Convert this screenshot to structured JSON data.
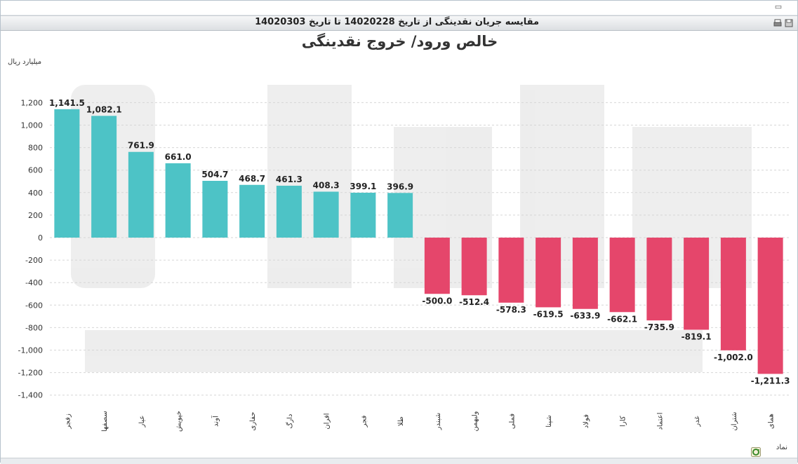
{
  "window": {
    "title": "مقایسه جریان نقدینگی از تاریخ 14020228 تا تاریخ 14020303",
    "icons": [
      "print-icon",
      "restore-icon"
    ]
  },
  "chart_data": {
    "type": "bar",
    "title": "خالص ورود/ خروج نقدینگی",
    "ylabel": "میلیارد ریال",
    "xlabel": "نماد",
    "categories": [
      "زفجر",
      "سصفها",
      "عیار",
      "خپویش",
      "آوند",
      "حفاری",
      "دارگ",
      "افران",
      "فجر",
      "طلا",
      "شبندر",
      "ولبهمن",
      "فملی",
      "شپنا",
      "فولاد",
      "کارا",
      "اعتماد",
      "غدر",
      "شتران",
      "همای"
    ],
    "values": [
      1141.5,
      1082.1,
      761.9,
      661.0,
      504.7,
      468.7,
      461.3,
      408.3,
      399.1,
      396.9,
      -500.0,
      -512.4,
      -578.3,
      -619.5,
      -633.9,
      -662.1,
      -735.9,
      -819.1,
      -1002.0,
      -1211.3
    ],
    "value_labels": [
      "1,141.5",
      "1,082.1",
      "761.9",
      "661.0",
      "504.7",
      "468.7",
      "461.3",
      "408.3",
      "399.1",
      "396.9",
      "-500.0",
      "-512.4",
      "-578.3",
      "-619.5",
      "-633.9",
      "-662.1",
      "-735.9",
      "-819.1",
      "-1,002.0",
      "-1,211.3"
    ],
    "yticks": [
      1200,
      1000,
      800,
      600,
      400,
      200,
      0,
      -200,
      -400,
      -600,
      -800,
      -1000,
      -1200,
      -1400
    ],
    "ytick_labels": [
      "1,200",
      "1,000",
      "800",
      "600",
      "400",
      "200",
      "0",
      "-200",
      "-400",
      "-600",
      "-800",
      "-1,000",
      "-1,200",
      "-1,400"
    ],
    "ylim": [
      -1400,
      1200
    ],
    "grid": true,
    "colors": {
      "positive": "#4dc3c6",
      "negative": "#e5466b",
      "grid": "#d6d6d6"
    }
  }
}
